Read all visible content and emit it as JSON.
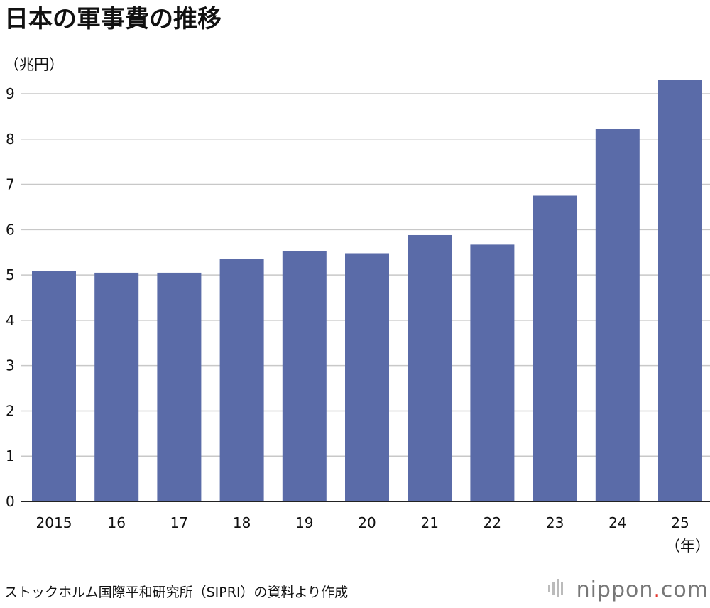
{
  "chart_data": {
    "type": "bar",
    "title": "日本の軍事費の推移",
    "ylabel": "（兆円）",
    "xlabel": "（年）",
    "categories": [
      "2015",
      "16",
      "17",
      "18",
      "19",
      "20",
      "21",
      "22",
      "23",
      "24",
      "25"
    ],
    "values": [
      5.09,
      5.05,
      5.05,
      5.35,
      5.53,
      5.48,
      5.88,
      5.67,
      6.75,
      8.22,
      9.3
    ],
    "ylim": [
      0,
      9
    ],
    "yticks": [
      "0",
      "1",
      "2",
      "3",
      "4",
      "5",
      "6",
      "7",
      "8",
      "9"
    ],
    "grid": true,
    "bar_color": "#5a6ba8"
  },
  "source": "ストックホルム国際平和研究所（SIPRI）の資料より作成",
  "logo": {
    "text_main": "nippon",
    "text_dot": ".",
    "text_tail": "com",
    "dot_color": "#e5342d"
  }
}
